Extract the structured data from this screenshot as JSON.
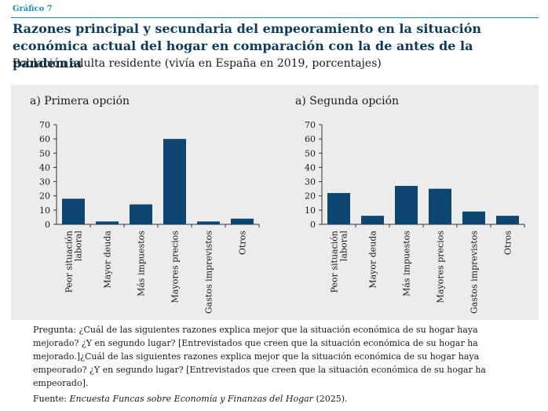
{
  "figure_label": "Gráfico 7",
  "title": "Razones principal y secundaria del empeoramiento en la situación económica actual del hogar en comparación con la de antes de la pandemia",
  "subtitle": "Población adulta residente (vivía en España en 2019, porcentajes)",
  "colors": {
    "bar": "#0d4670",
    "accent": "#1a8fbf",
    "panel_bg": "#ececec"
  },
  "chart_data": [
    {
      "type": "bar",
      "title": "a) Primera opción",
      "categories": [
        "Peor situación laboral",
        "Mayor deuda",
        "Más impuestos",
        "Mayores precios",
        "Gastos imprevistos",
        "Otros"
      ],
      "category_lines": [
        [
          "Peor situación",
          "laboral"
        ],
        [
          "Mayor deuda"
        ],
        [
          "Más impuestos"
        ],
        [
          "Mayores precios"
        ],
        [
          "Gastos imprevistos"
        ],
        [
          "Otros"
        ]
      ],
      "values": [
        18,
        2,
        14,
        60,
        2,
        4
      ],
      "ylim": [
        0,
        70
      ],
      "yticks": [
        0,
        10,
        20,
        30,
        40,
        50,
        60,
        70
      ]
    },
    {
      "type": "bar",
      "title": "a) Segunda opción",
      "categories": [
        "Peor situación laboral",
        "Mayor deuda",
        "Más impuestos",
        "Mayores precios",
        "Gastos imprevistos",
        "Otros"
      ],
      "category_lines": [
        [
          "Peor situación",
          "laboral"
        ],
        [
          "Mayor deuda"
        ],
        [
          "Más impuestos"
        ],
        [
          "Mayores precios"
        ],
        [
          "Gastos imprevistos"
        ],
        [
          "Otros"
        ]
      ],
      "values": [
        22,
        6,
        27,
        25,
        9,
        6
      ],
      "ylim": [
        0,
        70
      ],
      "yticks": [
        0,
        10,
        20,
        30,
        40,
        50,
        60,
        70
      ]
    }
  ],
  "notes": {
    "question": "Pregunta: ¿Cuál de las siguientes razones explica mejor que la situación económica de su hogar haya mejorado? ¿Y en segundo lugar? [Entrevistados que creen que la situación económica de su hogar ha mejorado.]¿Cuál de las siguientes razones explica mejor que la situación económica de su hogar haya empeorado? ¿Y en segundo lugar? [Entrevistados que creen que la situación económica de su hogar ha empeorado].",
    "source_label": "Fuente:",
    "source_title": "Encuesta Funcas sobre Economía y Finanzas del Hogar",
    "source_year": "(2025)."
  }
}
